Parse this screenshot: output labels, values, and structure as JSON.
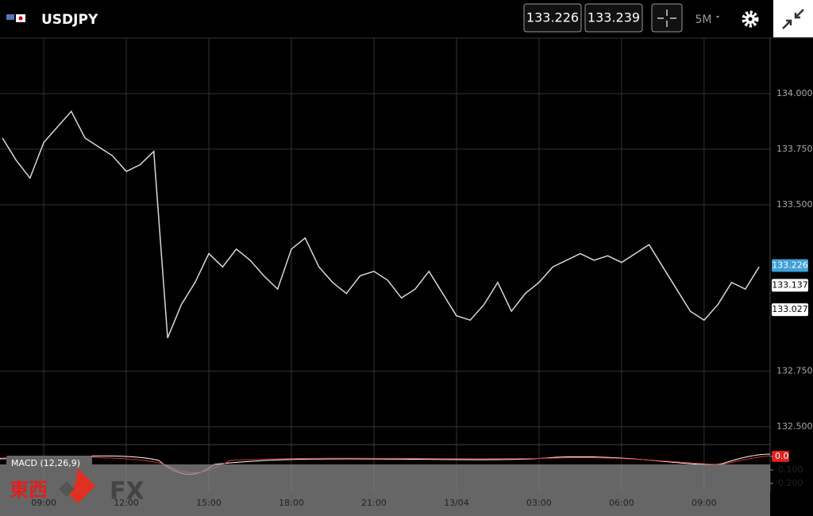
{
  "header": {
    "symbol": "USDJPY",
    "bid": "133.226",
    "ask": "133.239",
    "timeframe": "5M"
  },
  "chart_data": {
    "type": "line",
    "x": [
      -1.5,
      -1,
      -0.5,
      0,
      0.5,
      1,
      1.5,
      2,
      2.5,
      3,
      3.5,
      4,
      4.5,
      5,
      5.5,
      6,
      6.5,
      7,
      7.5,
      8,
      8.5,
      9,
      9.5,
      10,
      10.5,
      11,
      11.5,
      12,
      12.5,
      13,
      13.5,
      14,
      14.5,
      15,
      15.5,
      16,
      16.5,
      17,
      17.5,
      18,
      18.5,
      19,
      19.5,
      20,
      20.5,
      21,
      21.5,
      22,
      22.5,
      23,
      23.5,
      24,
      24.5,
      25,
      25.5,
      26
    ],
    "values": [
      133.8,
      133.7,
      133.62,
      133.78,
      133.85,
      133.92,
      133.8,
      133.76,
      133.72,
      133.65,
      133.68,
      133.74,
      132.9,
      133.05,
      133.15,
      133.28,
      133.22,
      133.3,
      133.25,
      133.18,
      133.12,
      133.3,
      133.35,
      133.22,
      133.15,
      133.1,
      133.18,
      133.2,
      133.16,
      133.08,
      133.12,
      133.2,
      133.1,
      133.0,
      132.98,
      133.05,
      133.15,
      133.02,
      133.1,
      133.15,
      133.22,
      133.25,
      133.28,
      133.25,
      133.27,
      133.24,
      133.28,
      133.32,
      133.22,
      133.12,
      133.02,
      132.98,
      133.05,
      133.15,
      133.12,
      133.22
    ],
    "color": "#d8d8d8",
    "xlim": [
      -1.59,
      26.4
    ],
    "xticks": [
      {
        "value": 0,
        "label": "09:00"
      },
      {
        "value": 3,
        "label": "12:00"
      },
      {
        "value": 6,
        "label": "15:00"
      },
      {
        "value": 9,
        "label": "18:00"
      },
      {
        "value": 12,
        "label": "21:00"
      },
      {
        "value": 15,
        "label": "13/04"
      },
      {
        "value": 18,
        "label": "03:00"
      },
      {
        "value": 21,
        "label": "06:00"
      },
      {
        "value": 24,
        "label": "09:00"
      }
    ],
    "ylim": [
      132.42,
      134.25
    ],
    "yticks": [
      {
        "value": 134,
        "label": "134.000"
      },
      {
        "value": 133.75,
        "label": "133.750"
      },
      {
        "value": 133.5,
        "label": "133.500"
      },
      {
        "value": 132.75,
        "label": "132.750"
      },
      {
        "value": 132.5,
        "label": "132.500"
      }
    ],
    "grid": true,
    "price_markers": [
      133.226,
      133.137,
      133.027
    ]
  },
  "macd": {
    "label": "MACD (12,26,9)",
    "ylim": [
      -0.265,
      0.076
    ],
    "yticks": [
      {
        "value": 0,
        "label": "0.0"
      },
      {
        "value": -0.1,
        "label": "-0.100"
      },
      {
        "value": -0.2,
        "label": "-0.200"
      }
    ]
  },
  "logo": {
    "left": "東西",
    "right": "FX"
  }
}
